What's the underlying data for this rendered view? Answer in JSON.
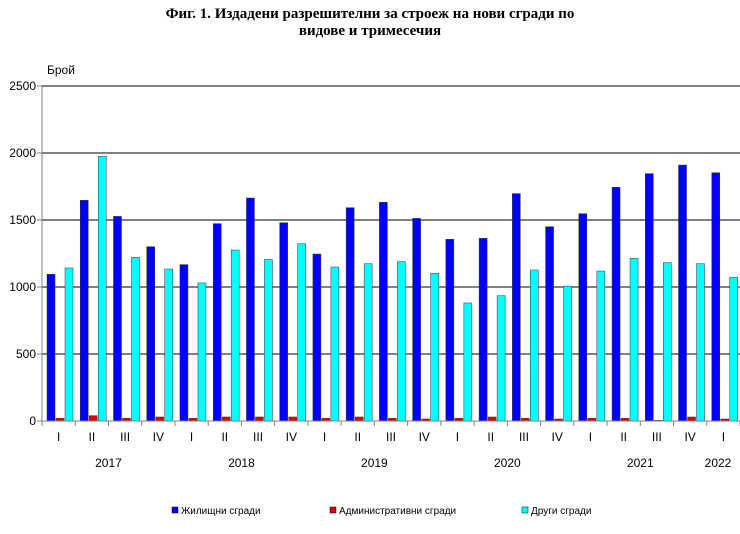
{
  "chart_data": {
    "type": "bar",
    "title_line1": "Фиг. 1. Издадени разрешителни за строеж на нови сгради по",
    "title_line2": "видове и тримесечия",
    "ylabel": "Брой",
    "ylim": [
      0,
      2500
    ],
    "yticks": [
      "0",
      "500",
      "1000",
      "1500",
      "2000",
      "2500"
    ],
    "grid": true,
    "legend_position": "bottom",
    "categories": [
      "I",
      "II",
      "III",
      "IV",
      "I",
      "II",
      "III",
      "IV",
      "I",
      "II",
      "III",
      "IV",
      "I",
      "II",
      "III",
      "IV",
      "I",
      "II",
      "III",
      "IV",
      "I"
    ],
    "years": [
      {
        "label": "2017",
        "start": 0,
        "count": 4
      },
      {
        "label": "2018",
        "start": 4,
        "count": 4
      },
      {
        "label": "2019",
        "start": 8,
        "count": 4
      },
      {
        "label": "2020",
        "start": 12,
        "count": 4
      },
      {
        "label": "2021",
        "start": 16,
        "count": 4
      },
      {
        "label": "2022",
        "start": 20,
        "count": 1
      }
    ],
    "series": [
      {
        "name": "Жилищни сгради",
        "color": "#0000ff",
        "values": [
          1095,
          1647,
          1527,
          1301,
          1167,
          1473,
          1664,
          1480,
          1246,
          1592,
          1632,
          1512,
          1356,
          1363,
          1697,
          1450,
          1547,
          1744,
          1846,
          1910,
          1853
        ]
      },
      {
        "name": "Административни сгради",
        "color": "#e00000",
        "values": [
          20,
          40,
          20,
          30,
          20,
          30,
          30,
          30,
          20,
          30,
          20,
          15,
          20,
          30,
          20,
          15,
          20,
          20,
          5,
          30,
          15
        ]
      },
      {
        "name": "Други сгради",
        "color": "#00ffff",
        "values": [
          1142,
          1975,
          1221,
          1134,
          1030,
          1276,
          1206,
          1323,
          1149,
          1174,
          1189,
          1102,
          881,
          935,
          1127,
          1007,
          1119,
          1214,
          1182,
          1174,
          1072
        ]
      }
    ]
  }
}
